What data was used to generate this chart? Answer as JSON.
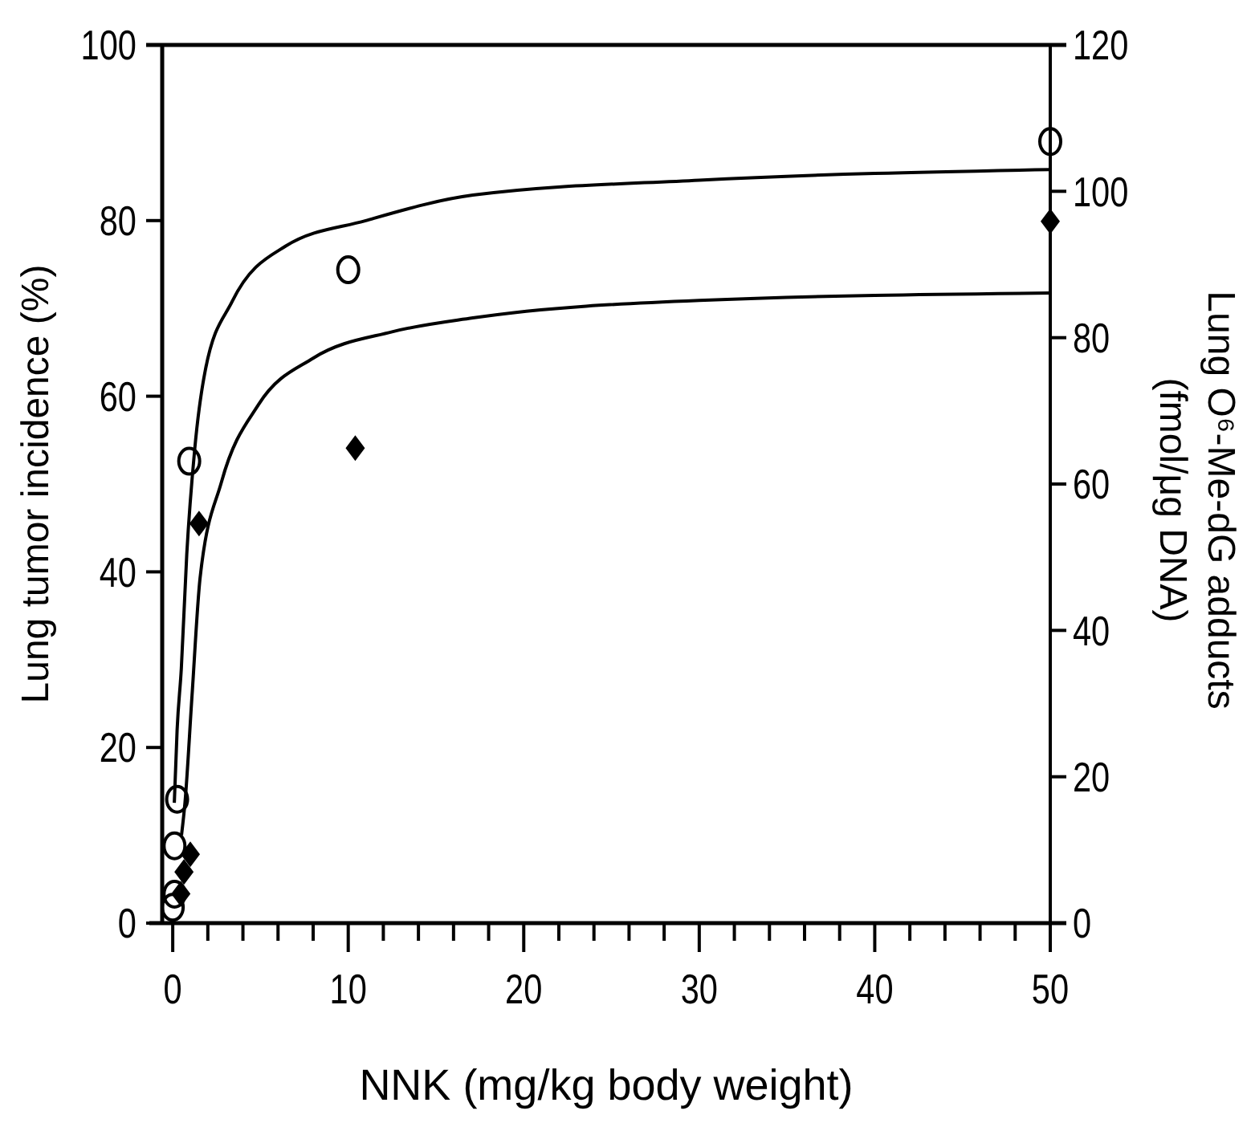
{
  "chart_data": {
    "type": "scatter",
    "xlabel": "NNK (mg/kg body weight)",
    "ylabel": "Lung tumor incidence (%)",
    "y2label": "Lung O⁶-Me-dG adducts\n(fmol/μg DNA)",
    "xlim": [
      -0.6,
      50
    ],
    "xticks": [
      0,
      {
        "value": 2,
        "label": null
      },
      {
        "value": 4,
        "label": null
      },
      {
        "value": 6,
        "label": null
      },
      {
        "value": 8,
        "label": null
      },
      10,
      {
        "value": 12,
        "label": null
      },
      {
        "value": 14,
        "label": null
      },
      {
        "value": 16,
        "label": null
      },
      {
        "value": 18,
        "label": null
      },
      20,
      {
        "value": 22,
        "label": null
      },
      {
        "value": 24,
        "label": null
      },
      {
        "value": 26,
        "label": null
      },
      {
        "value": 28,
        "label": null
      },
      30,
      {
        "value": 32,
        "label": null
      },
      {
        "value": 34,
        "label": null
      },
      {
        "value": 36,
        "label": null
      },
      {
        "value": 38,
        "label": null
      },
      40,
      {
        "value": 42,
        "label": null
      },
      {
        "value": 44,
        "label": null
      },
      {
        "value": 46,
        "label": null
      },
      {
        "value": 48,
        "label": null
      },
      50
    ],
    "ylim": [
      0,
      100
    ],
    "yticks": [
      0,
      20,
      40,
      60,
      80,
      100
    ],
    "y2lim": [
      0,
      120
    ],
    "y2ticks": [
      0,
      20,
      40,
      60,
      80,
      100,
      120
    ],
    "grid": false,
    "series": [
      {
        "type": "line",
        "marker": "none",
        "color": "#000000",
        "axis": "y",
        "x": [
          0.09,
          0.25,
          0.49,
          0.8,
          1.25,
          1.86,
          3.39,
          6.44,
          11,
          17.1,
          30,
          50
        ],
        "values": [
          13.7,
          22,
          29,
          42,
          53.9,
          63,
          70.8,
          77.1,
          80,
          82.9,
          84.6,
          85.8
        ]
      },
      {
        "type": "line",
        "marker": "none",
        "color": "#000000",
        "axis": "y2",
        "x": [
          0.5,
          0.7,
          1.1,
          1.56,
          2.78,
          4.9,
          8,
          12.5,
          17.1,
          30,
          50
        ],
        "values": [
          12,
          16.5,
          31.1,
          47.2,
          60.3,
          70.9,
          77.2,
          80.8,
          82.7,
          85.1,
          86.1
        ]
      },
      {
        "marker": "circle",
        "color": "#000000",
        "axis": "y",
        "x": [
          0,
          0.1,
          0.1,
          0.25,
          0.94,
          10,
          50
        ],
        "values": [
          1.8,
          3.3,
          8.8,
          14.1,
          52.6,
          74.4,
          89
        ]
      },
      {
        "marker": "diamond",
        "color": "#000000",
        "axis": "y2",
        "x": [
          0.46,
          0.64,
          1,
          1.5,
          10.4,
          50
        ],
        "values": [
          4,
          7,
          9.4,
          54.6,
          64.9,
          95.9
        ]
      }
    ]
  }
}
